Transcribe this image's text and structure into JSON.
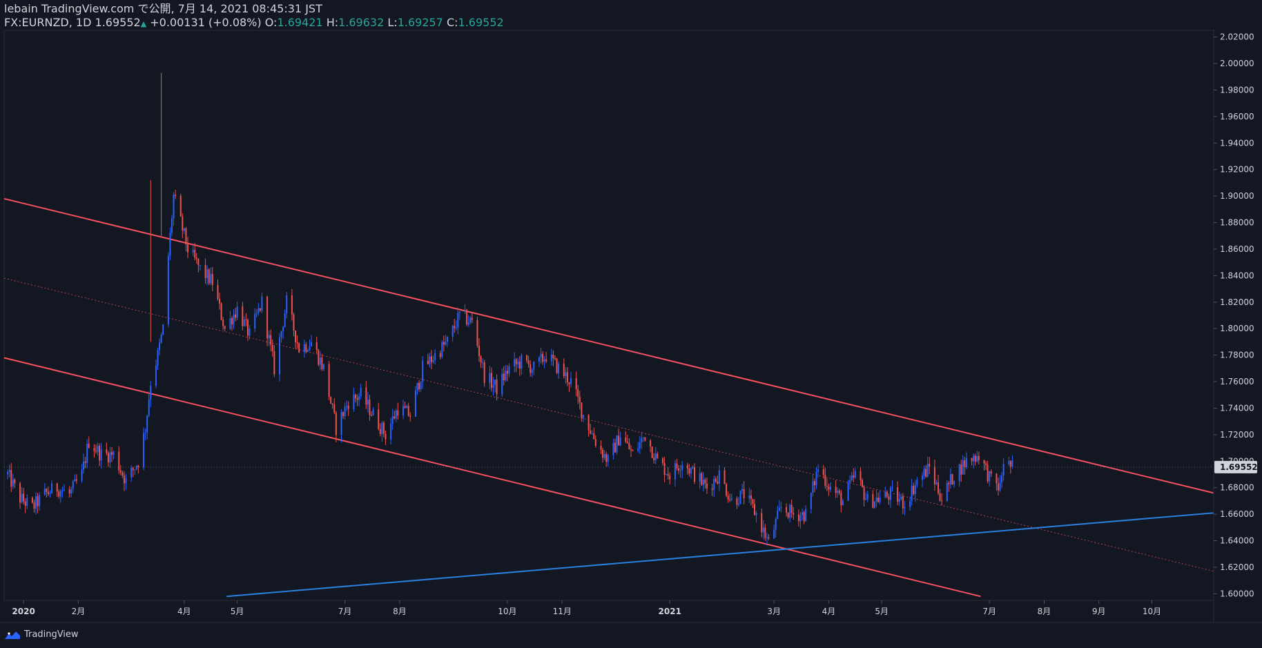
{
  "header": {
    "publish_line": "lebain TradingView.com で公開, 7月 14, 2021 08:45:31 JST",
    "symbol": "FX:EURNZD, 1D",
    "last": "1.69552",
    "change": "+0.00131 (+0.08%)",
    "o_label": "O:",
    "o_value": "1.69421",
    "h_label": "H:",
    "h_value": "1.69632",
    "l_label": "L:",
    "l_value": "1.69257",
    "c_label": "C:",
    "c_value": "1.69552"
  },
  "footer": {
    "brand": "TradingView"
  },
  "colors": {
    "background": "#131722",
    "up": "#2962ff",
    "down": "#ef5350",
    "channel": "#f7525f",
    "support": "#2a7fdf",
    "text": "#d1d4dc",
    "green": "#26a69a"
  },
  "chart_data": {
    "type": "candlestick",
    "title": "FX:EURNZD, 1D",
    "ylim": [
      1.595,
      2.025
    ],
    "yticks": [
      "2.02000",
      "2.00000",
      "1.98000",
      "1.96000",
      "1.94000",
      "1.92000",
      "1.90000",
      "1.88000",
      "1.86000",
      "1.84000",
      "1.82000",
      "1.80000",
      "1.78000",
      "1.76000",
      "1.74000",
      "1.72000",
      "1.70000",
      "1.68000",
      "1.66000",
      "1.64000",
      "1.62000",
      "1.60000"
    ],
    "current_price_label": "1.69552",
    "current_price": 1.69552,
    "xlabels": [
      {
        "date": "2020-01-01",
        "label": "2020"
      },
      {
        "date": "2020-02-01",
        "label": "2月"
      },
      {
        "date": "2020-04-01",
        "label": "4月"
      },
      {
        "date": "2020-05-01",
        "label": "5月"
      },
      {
        "date": "2020-07-01",
        "label": "7月"
      },
      {
        "date": "2020-08-01",
        "label": "8月"
      },
      {
        "date": "2020-10-01",
        "label": "10月"
      },
      {
        "date": "2020-11-01",
        "label": "11月"
      },
      {
        "date": "2021-01-01",
        "label": "2021"
      },
      {
        "date": "2021-03-01",
        "label": "3月"
      },
      {
        "date": "2021-04-01",
        "label": "4月"
      },
      {
        "date": "2021-05-01",
        "label": "5月"
      },
      {
        "date": "2021-07-01",
        "label": "7月"
      },
      {
        "date": "2021-08-01",
        "label": "8月"
      },
      {
        "date": "2021-09-01",
        "label": "9月"
      },
      {
        "date": "2021-10-01",
        "label": "10月"
      }
    ],
    "xrange": [
      "2019-12-21",
      "2021-11-05"
    ],
    "close_path": [
      [
        "2019-12-23",
        1.69
      ],
      [
        "2019-12-30",
        1.672
      ],
      [
        "2020-01-06",
        1.665
      ],
      [
        "2020-01-13",
        1.675
      ],
      [
        "2020-01-20",
        1.68
      ],
      [
        "2020-01-27",
        1.675
      ],
      [
        "2020-02-03",
        1.69
      ],
      [
        "2020-02-07",
        1.715
      ],
      [
        "2020-02-14",
        1.705
      ],
      [
        "2020-02-21",
        1.705
      ],
      [
        "2020-02-28",
        1.685
      ],
      [
        "2020-03-06",
        1.7
      ],
      [
        "2020-03-10",
        1.725
      ],
      [
        "2020-03-13",
        1.76
      ],
      [
        "2020-03-17",
        1.78
      ],
      [
        "2020-03-20",
        1.8
      ],
      [
        "2020-03-23",
        1.855
      ],
      [
        "2020-03-26",
        1.9
      ],
      [
        "2020-03-30",
        1.88
      ],
      [
        "2020-04-03",
        1.86
      ],
      [
        "2020-04-10",
        1.845
      ],
      [
        "2020-04-17",
        1.835
      ],
      [
        "2020-04-24",
        1.8
      ],
      [
        "2020-05-01",
        1.815
      ],
      [
        "2020-05-08",
        1.795
      ],
      [
        "2020-05-15",
        1.82
      ],
      [
        "2020-05-22",
        1.77
      ],
      [
        "2020-05-29",
        1.82
      ],
      [
        "2020-06-05",
        1.785
      ],
      [
        "2020-06-12",
        1.79
      ],
      [
        "2020-06-19",
        1.77
      ],
      [
        "2020-06-26",
        1.725
      ],
      [
        "2020-07-03",
        1.745
      ],
      [
        "2020-07-10",
        1.75
      ],
      [
        "2020-07-17",
        1.735
      ],
      [
        "2020-07-24",
        1.72
      ],
      [
        "2020-07-31",
        1.74
      ],
      [
        "2020-08-07",
        1.735
      ],
      [
        "2020-08-14",
        1.77
      ],
      [
        "2020-08-21",
        1.78
      ],
      [
        "2020-08-28",
        1.79
      ],
      [
        "2020-09-04",
        1.81
      ],
      [
        "2020-09-11",
        1.805
      ],
      [
        "2020-09-18",
        1.765
      ],
      [
        "2020-09-25",
        1.755
      ],
      [
        "2020-10-02",
        1.77
      ],
      [
        "2020-10-09",
        1.775
      ],
      [
        "2020-10-16",
        1.77
      ],
      [
        "2020-10-23",
        1.78
      ],
      [
        "2020-10-30",
        1.77
      ],
      [
        "2020-11-06",
        1.76
      ],
      [
        "2020-11-13",
        1.735
      ],
      [
        "2020-11-20",
        1.715
      ],
      [
        "2020-11-27",
        1.7
      ],
      [
        "2020-12-04",
        1.72
      ],
      [
        "2020-12-11",
        1.705
      ],
      [
        "2020-12-18",
        1.72
      ],
      [
        "2020-12-25",
        1.7
      ],
      [
        "2021-01-01",
        1.69
      ],
      [
        "2021-01-08",
        1.7
      ],
      [
        "2021-01-15",
        1.69
      ],
      [
        "2021-01-22",
        1.68
      ],
      [
        "2021-01-29",
        1.69
      ],
      [
        "2021-02-05",
        1.67
      ],
      [
        "2021-02-12",
        1.675
      ],
      [
        "2021-02-19",
        1.66
      ],
      [
        "2021-02-26",
        1.638
      ],
      [
        "2021-03-05",
        1.665
      ],
      [
        "2021-03-12",
        1.66
      ],
      [
        "2021-03-19",
        1.66
      ],
      [
        "2021-03-26",
        1.695
      ],
      [
        "2021-04-02",
        1.68
      ],
      [
        "2021-04-09",
        1.67
      ],
      [
        "2021-04-16",
        1.69
      ],
      [
        "2021-04-23",
        1.67
      ],
      [
        "2021-04-30",
        1.672
      ],
      [
        "2021-05-07",
        1.675
      ],
      [
        "2021-05-14",
        1.668
      ],
      [
        "2021-05-21",
        1.685
      ],
      [
        "2021-05-28",
        1.695
      ],
      [
        "2021-06-04",
        1.672
      ],
      [
        "2021-06-11",
        1.69
      ],
      [
        "2021-06-18",
        1.7
      ],
      [
        "2021-06-25",
        1.705
      ],
      [
        "2021-07-02",
        1.685
      ],
      [
        "2021-07-07",
        1.68
      ],
      [
        "2021-07-09",
        1.7
      ],
      [
        "2021-07-14",
        1.6955
      ]
    ],
    "drawings": [
      {
        "name": "channel-upper-line",
        "color": "channel",
        "from": [
          "2019-12-21",
          1.898
        ],
        "to": [
          "2021-11-05",
          1.676
        ]
      },
      {
        "name": "channel-lower-line",
        "color": "channel",
        "from": [
          "2019-12-21",
          1.778
        ],
        "to": [
          "2021-06-26",
          1.598
        ]
      },
      {
        "name": "channel-mid-line",
        "color": "channel",
        "dashed": true,
        "from": [
          "2019-12-21",
          1.838
        ],
        "to": [
          "2021-11-05",
          1.617
        ]
      },
      {
        "name": "support-trendline",
        "color": "support",
        "from": [
          "2020-04-25",
          1.598
        ],
        "to": [
          "2021-11-05",
          1.661
        ]
      }
    ]
  }
}
